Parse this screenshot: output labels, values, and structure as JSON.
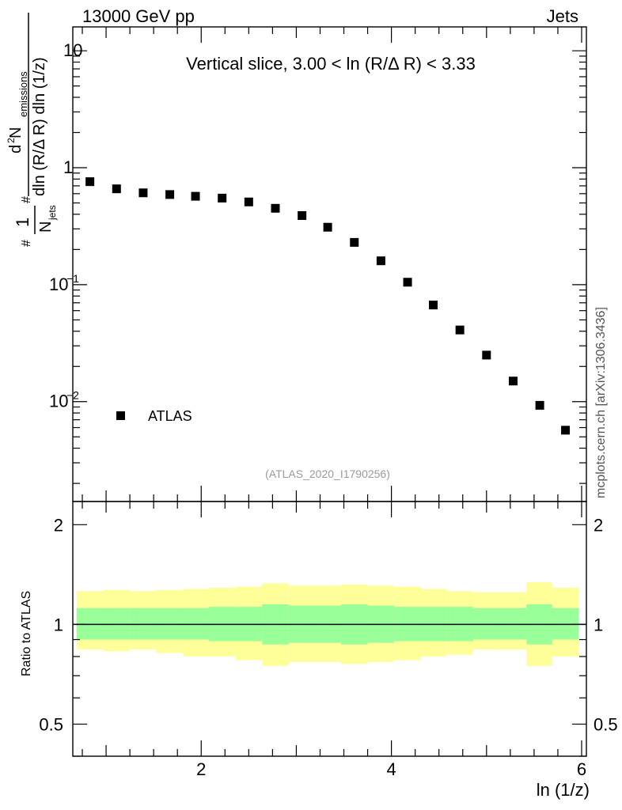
{
  "header": {
    "left": "13000 GeV pp",
    "right": "Jets"
  },
  "side_note": "mcplots.cern.ch [arXiv:1306.3436]",
  "watermark": "(ATLAS_2020_I1790256)",
  "chart_data": [
    {
      "type": "scatter",
      "title": "Vertical slice, 3.00 < ln (R/Δ R) < 3.33",
      "xlabel": "ln (1/z)",
      "ylabel": "#frac{1}{N_{jets}} #frac{d^{2} N_{emissions}}{dln (R/Δ R) dln (1/z)}",
      "ylabel_lines": {
        "prefactor_num": "1",
        "prefactor_den": "N",
        "prefactor_den_sub": "jets",
        "frac_num_main": "d",
        "frac_num_sup": "2",
        "frac_num_rest": " N",
        "frac_num_sub": "emissions",
        "frac_den": "dln (R/Δ R) dln (1/z)",
        "hash1": "#",
        "hash2": "#"
      },
      "xlim": [
        0.65,
        6.05
      ],
      "ylim": [
        0.0014,
        16
      ],
      "yscale": "log",
      "xticks": [
        2,
        4,
        6
      ],
      "yticks": [
        {
          "value": 0.01,
          "base": "10",
          "exp": "−2"
        },
        {
          "value": 0.1,
          "base": "10",
          "exp": "−1"
        },
        {
          "value": 1,
          "base": "1",
          "exp": ""
        },
        {
          "value": 10,
          "base": "10",
          "exp": ""
        }
      ],
      "series": [
        {
          "name": "ATLAS",
          "marker": "square",
          "x": [
            0.83,
            1.11,
            1.39,
            1.67,
            1.94,
            2.22,
            2.5,
            2.78,
            3.06,
            3.33,
            3.61,
            3.89,
            4.17,
            4.44,
            4.72,
            5.0,
            5.28,
            5.56,
            5.83
          ],
          "y": [
            0.76,
            0.66,
            0.61,
            0.59,
            0.57,
            0.55,
            0.51,
            0.45,
            0.39,
            0.31,
            0.23,
            0.16,
            0.105,
            0.067,
            0.041,
            0.025,
            0.015,
            0.0093,
            0.0057
          ]
        }
      ],
      "legend": {
        "position": "bottom-left",
        "label": "ATLAS"
      }
    },
    {
      "type": "area",
      "ylabel": "Ratio to ATLAS",
      "xlim": [
        0.65,
        6.05
      ],
      "ylim": [
        0.4,
        2.35
      ],
      "yscale": "log",
      "xticks": [
        2,
        4,
        6
      ],
      "yticks": [
        0.5,
        1,
        2
      ],
      "reference_line": 1,
      "bin_edges": [
        0.69,
        0.97,
        1.25,
        1.53,
        1.81,
        2.08,
        2.36,
        2.64,
        2.92,
        3.19,
        3.47,
        3.75,
        4.03,
        4.31,
        4.58,
        4.86,
        5.14,
        5.42,
        5.69,
        5.97
      ],
      "bands": [
        {
          "name": "stat",
          "color": "#99ff99",
          "lo": [
            0.9,
            0.9,
            0.9,
            0.9,
            0.9,
            0.89,
            0.89,
            0.87,
            0.88,
            0.88,
            0.87,
            0.88,
            0.89,
            0.89,
            0.89,
            0.9,
            0.9,
            0.87,
            0.9
          ],
          "hi": [
            1.12,
            1.12,
            1.12,
            1.12,
            1.12,
            1.13,
            1.13,
            1.15,
            1.14,
            1.14,
            1.15,
            1.14,
            1.13,
            1.13,
            1.13,
            1.12,
            1.12,
            1.15,
            1.12
          ]
        },
        {
          "name": "syst",
          "color": "#ffff99",
          "lo": [
            0.84,
            0.83,
            0.84,
            0.82,
            0.8,
            0.8,
            0.78,
            0.75,
            0.77,
            0.77,
            0.76,
            0.77,
            0.78,
            0.8,
            0.81,
            0.84,
            0.84,
            0.75,
            0.8
          ],
          "hi": [
            1.26,
            1.27,
            1.26,
            1.27,
            1.28,
            1.29,
            1.3,
            1.33,
            1.31,
            1.31,
            1.32,
            1.31,
            1.3,
            1.28,
            1.26,
            1.25,
            1.25,
            1.34,
            1.29
          ]
        }
      ]
    }
  ]
}
